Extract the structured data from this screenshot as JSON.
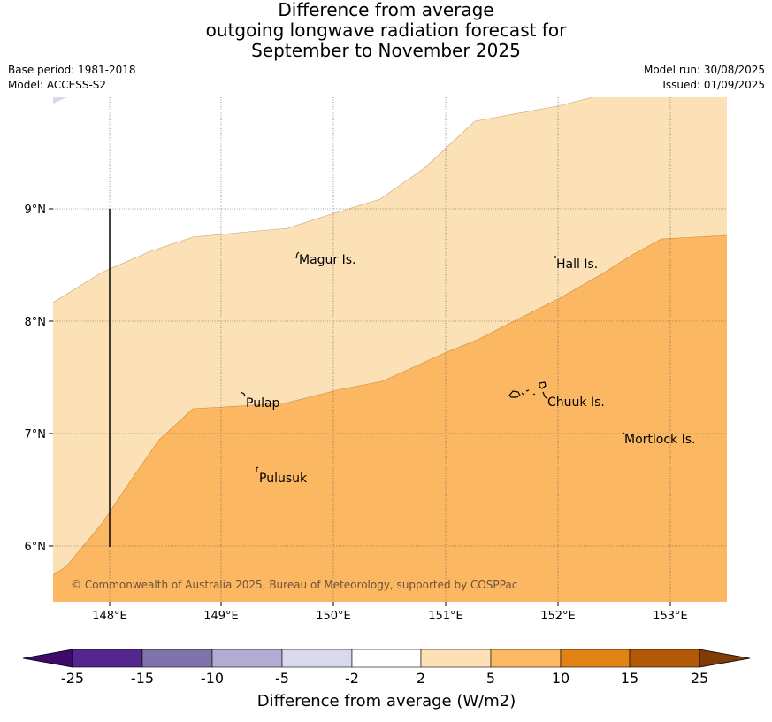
{
  "title": {
    "line1": "Difference from average",
    "line2": "outgoing longwave radiation forecast for",
    "line3": "September to November 2025"
  },
  "meta": {
    "base_period": "Base period: 1981-2018",
    "model": "Model: ACCESS-S2",
    "model_run": "Model run: 30/08/2025",
    "issued": "Issued: 01/09/2025"
  },
  "map": {
    "x_ticks": [
      "148°E",
      "149°E",
      "150°E",
      "151°E",
      "152°E",
      "153°E"
    ],
    "y_ticks": [
      "9°N",
      "8°N",
      "7°N",
      "6°N"
    ],
    "places": [
      "Magur Is.",
      "Hall Is.",
      "Pulap",
      "Chuuk Is.",
      "Mortlock Is.",
      "Pulusuk"
    ],
    "copyright": "© Commonwealth of Australia 2025, Bureau of Meteorology, supported by COSPPac",
    "colors": {
      "band_2_5": "#fce0b6",
      "band_5_10": "#fbb762",
      "band_minus5_minus2": "#d8d8ea"
    }
  },
  "colorbar": {
    "ticks": [
      "-25",
      "-15",
      "-10",
      "-5",
      "-2",
      "2",
      "5",
      "10",
      "15",
      "25"
    ],
    "label": "Difference from average (W/m2)",
    "colors": [
      "#3f0a6a",
      "#54278f",
      "#8073ac",
      "#b2abd2",
      "#d8daeb",
      "#ffffff",
      "#fee0b6",
      "#fdb863",
      "#e08214",
      "#b35806",
      "#7f3b08"
    ]
  }
}
